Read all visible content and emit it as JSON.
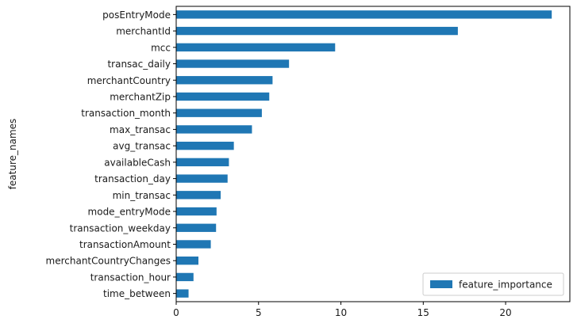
{
  "chart_data": {
    "type": "bar",
    "orientation": "horizontal",
    "ylabel": "feature_names",
    "xlabel": "",
    "title": "",
    "xlim": [
      0,
      23.9
    ],
    "xticks": [
      0,
      5,
      10,
      15,
      20
    ],
    "grid": false,
    "legend": {
      "position": "bottom-right",
      "entries": [
        "feature_importance"
      ]
    },
    "colors": {
      "bar": "#1f77b4",
      "axis": "#000000"
    },
    "categories": [
      "posEntryMode",
      "merchantId",
      "mcc",
      "transac_daily",
      "merchantCountry",
      "merchantZip",
      "transaction_month",
      "max_transac",
      "avg_transac",
      "availableCash",
      "transaction_day",
      "min_transac",
      "mode_entryMode",
      "transaction_weekday",
      "transactionAmount",
      "merchantCountryChanges",
      "transaction_hour",
      "time_between"
    ],
    "series": [
      {
        "name": "feature_importance",
        "values": [
          22.8,
          17.1,
          9.65,
          6.85,
          5.85,
          5.65,
          5.2,
          4.6,
          3.5,
          3.2,
          3.12,
          2.7,
          2.45,
          2.42,
          2.1,
          1.35,
          1.05,
          0.75
        ]
      }
    ]
  }
}
